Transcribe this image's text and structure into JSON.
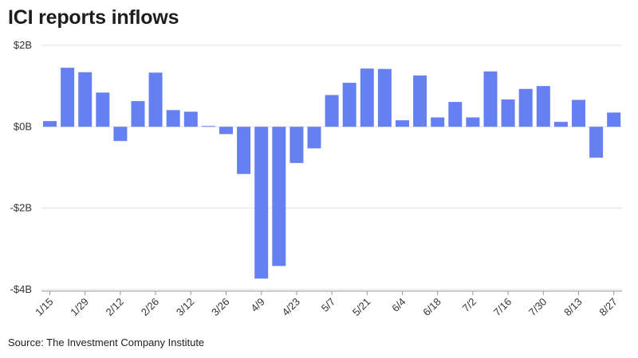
{
  "title": "ICI reports inflows",
  "source": "Source: The Investment Company Institute",
  "colors": {
    "bar": "#6680f2",
    "grid": "#e1e1e1",
    "axis": "#333333"
  },
  "chart_data": {
    "type": "bar",
    "title": "ICI reports inflows",
    "xlabel": "",
    "ylabel": "",
    "unit": "$B",
    "ylim": [
      -4,
      2
    ],
    "yticks": [
      {
        "value": 2,
        "label": "$2B"
      },
      {
        "value": 0,
        "label": "$0B"
      },
      {
        "value": -2,
        "label": "-$2B"
      },
      {
        "value": -4,
        "label": "-$4B"
      }
    ],
    "grid": true,
    "categories": [
      "1/15",
      "1/22",
      "1/29",
      "2/5",
      "2/12",
      "2/19",
      "2/26",
      "3/5",
      "3/12",
      "3/19",
      "3/26",
      "4/2",
      "4/9",
      "4/16",
      "4/23",
      "4/30",
      "5/7",
      "5/14",
      "5/21",
      "5/28",
      "6/4",
      "6/11",
      "6/18",
      "6/25",
      "7/2",
      "7/9",
      "7/16",
      "7/23",
      "7/30",
      "8/6",
      "8/13",
      "8/20",
      "8/27"
    ],
    "tick_labels": [
      "1/15",
      "",
      "1/29",
      "",
      "2/12",
      "",
      "2/26",
      "",
      "3/12",
      "",
      "3/26",
      "",
      "4/9",
      "",
      "4/23",
      "",
      "5/7",
      "",
      "5/21",
      "",
      "6/4",
      "",
      "6/18",
      "",
      "7/2",
      "",
      "7/16",
      "",
      "7/30",
      "",
      "8/13",
      "",
      "8/27"
    ],
    "values": [
      0.14,
      1.45,
      1.34,
      0.84,
      -0.35,
      0.63,
      1.33,
      0.41,
      0.37,
      0.02,
      -0.18,
      -1.16,
      -3.73,
      -3.42,
      -0.89,
      -0.53,
      0.78,
      1.08,
      1.43,
      1.42,
      0.16,
      1.26,
      0.23,
      0.61,
      0.23,
      1.36,
      0.67,
      0.93,
      1.0,
      0.12,
      0.66,
      -0.76,
      0.35
    ]
  }
}
